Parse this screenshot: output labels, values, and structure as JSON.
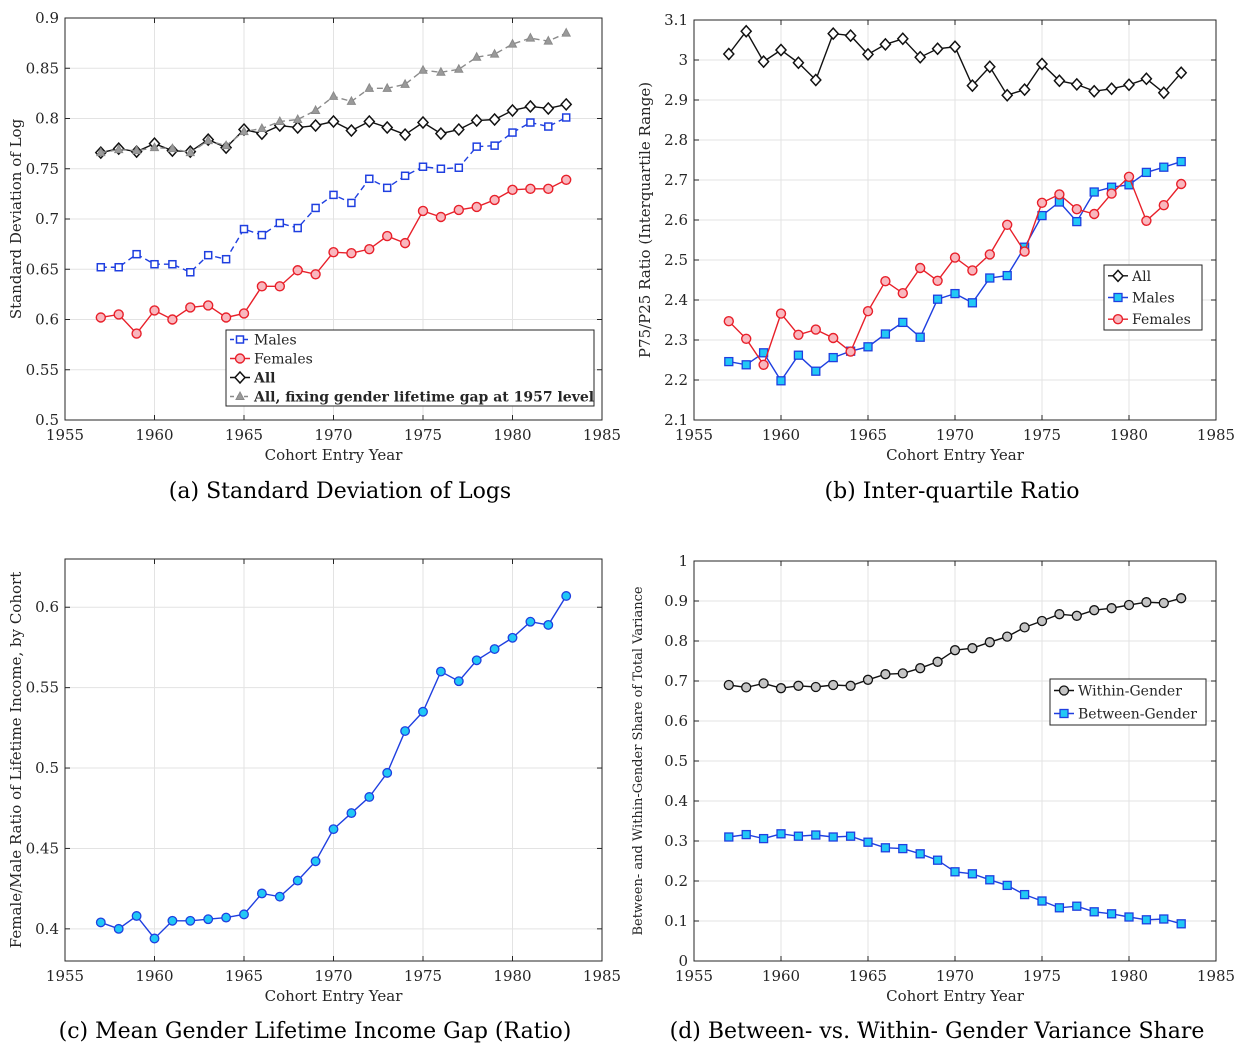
{
  "chart_data": [
    {
      "type": "line",
      "caption": "(a) Standard Deviation of Logs",
      "xlabel": "Cohort Entry Year",
      "ylabel": "Standard Deviation of Log",
      "xlim": [
        1955,
        1985
      ],
      "ylim": [
        0.5,
        0.9
      ],
      "xticks": [
        1955,
        1960,
        1965,
        1970,
        1975,
        1980,
        1985
      ],
      "yticks": [
        0.5,
        0.55,
        0.6,
        0.65,
        0.7,
        0.75,
        0.8,
        0.85,
        0.9
      ],
      "ytick_labels": [
        "0.5",
        "0.55",
        "0.6",
        "0.65",
        "0.7",
        "0.75",
        "0.8",
        "0.85",
        "0.9"
      ],
      "grid": true,
      "legend_position": "bottom-right",
      "x": [
        1957,
        1958,
        1959,
        1960,
        1961,
        1962,
        1963,
        1964,
        1965,
        1966,
        1967,
        1968,
        1969,
        1970,
        1971,
        1972,
        1973,
        1974,
        1975,
        1976,
        1977,
        1978,
        1979,
        1980,
        1981,
        1982,
        1983
      ],
      "series": [
        {
          "name": "Males",
          "color": "#1f3fe0",
          "dash": "6,4",
          "marker": "square-open",
          "values": [
            0.652,
            0.652,
            0.665,
            0.655,
            0.655,
            0.647,
            0.664,
            0.66,
            0.69,
            0.684,
            0.696,
            0.691,
            0.711,
            0.724,
            0.716,
            0.74,
            0.731,
            0.743,
            0.752,
            0.75,
            0.751,
            0.772,
            0.773,
            0.786,
            0.796,
            0.792,
            0.801
          ]
        },
        {
          "name": "Females",
          "color": "#e8202a",
          "dash": "",
          "marker": "circle-pink",
          "values": [
            0.602,
            0.605,
            0.586,
            0.609,
            0.6,
            0.612,
            0.614,
            0.602,
            0.606,
            0.633,
            0.633,
            0.649,
            0.645,
            0.667,
            0.666,
            0.67,
            0.683,
            0.676,
            0.708,
            0.702,
            0.709,
            0.712,
            0.719,
            0.729,
            0.73,
            0.73,
            0.739
          ]
        },
        {
          "name": "All",
          "color": "#111111",
          "dash": "",
          "marker": "diamond-open",
          "bold": true,
          "values": [
            0.766,
            0.77,
            0.767,
            0.775,
            0.768,
            0.767,
            0.779,
            0.771,
            0.789,
            0.785,
            0.793,
            0.791,
            0.793,
            0.797,
            0.788,
            0.797,
            0.791,
            0.784,
            0.796,
            0.785,
            0.789,
            0.798,
            0.799,
            0.808,
            0.812,
            0.81,
            0.814
          ]
        },
        {
          "name": "All, fixing gender lifetime gap at 1957 level",
          "color": "#8a8a8a",
          "dash": "6,4",
          "marker": "triangle-gray",
          "bold": true,
          "values": [
            0.766,
            0.769,
            0.768,
            0.771,
            0.77,
            0.766,
            0.778,
            0.773,
            0.787,
            0.79,
            0.797,
            0.799,
            0.808,
            0.822,
            0.817,
            0.83,
            0.83,
            0.834,
            0.848,
            0.846,
            0.849,
            0.861,
            0.864,
            0.874,
            0.88,
            0.877,
            0.885
          ]
        }
      ]
    },
    {
      "type": "line",
      "caption": "(b) Inter-quartile Ratio",
      "xlabel": "Cohort Entry Year",
      "ylabel": "P75/P25 Ratio (Interquartile Range)",
      "xlim": [
        1955,
        1985
      ],
      "ylim": [
        2.1,
        3.1
      ],
      "xticks": [
        1955,
        1960,
        1965,
        1970,
        1975,
        1980,
        1985
      ],
      "yticks": [
        2.1,
        2.2,
        2.3,
        2.4,
        2.5,
        2.6,
        2.7,
        2.8,
        2.9,
        3.0,
        3.1
      ],
      "ytick_labels": [
        "2.1",
        "2.2",
        "2.3",
        "2.4",
        "2.5",
        "2.6",
        "2.7",
        "2.8",
        "2.9",
        "3",
        "3.1"
      ],
      "grid": true,
      "legend_position": "center-right",
      "x": [
        1957,
        1958,
        1959,
        1960,
        1961,
        1962,
        1963,
        1964,
        1965,
        1966,
        1967,
        1968,
        1969,
        1970,
        1971,
        1972,
        1973,
        1974,
        1975,
        1976,
        1977,
        1978,
        1979,
        1980,
        1981,
        1982,
        1983
      ],
      "series": [
        {
          "name": "All",
          "color": "#111111",
          "dash": "",
          "marker": "diamond-open",
          "values": [
            3.015,
            3.072,
            2.996,
            3.025,
            2.993,
            2.95,
            3.066,
            3.061,
            3.014,
            3.039,
            3.053,
            3.007,
            3.028,
            3.033,
            2.936,
            2.983,
            2.912,
            2.926,
            2.99,
            2.948,
            2.939,
            2.922,
            2.928,
            2.938,
            2.953,
            2.918,
            2.968
          ]
        },
        {
          "name": "Males",
          "color": "#1f3fe0",
          "dash": "",
          "marker": "square-cyan",
          "values": [
            2.246,
            2.238,
            2.268,
            2.198,
            2.262,
            2.222,
            2.256,
            2.272,
            2.283,
            2.315,
            2.344,
            2.307,
            2.402,
            2.416,
            2.393,
            2.455,
            2.461,
            2.532,
            2.611,
            2.645,
            2.596,
            2.67,
            2.682,
            2.688,
            2.719,
            2.732,
            2.746
          ]
        },
        {
          "name": "Females",
          "color": "#e8202a",
          "dash": "",
          "marker": "circle-pink",
          "values": [
            2.347,
            2.303,
            2.238,
            2.366,
            2.313,
            2.326,
            2.305,
            2.271,
            2.372,
            2.447,
            2.417,
            2.48,
            2.448,
            2.506,
            2.474,
            2.514,
            2.588,
            2.521,
            2.643,
            2.664,
            2.627,
            2.615,
            2.666,
            2.708,
            2.598,
            2.637,
            2.69
          ]
        }
      ]
    },
    {
      "type": "line",
      "caption": "(c) Mean Gender Lifetime Income Gap (Ratio)",
      "xlabel": "Cohort Entry Year",
      "ylabel": "Female/Male Ratio of Lifetime Income, by Cohort",
      "xlim": [
        1955,
        1985
      ],
      "ylim": [
        0.38,
        0.63
      ],
      "xticks": [
        1955,
        1960,
        1965,
        1970,
        1975,
        1980,
        1985
      ],
      "yticks": [
        0.4,
        0.45,
        0.5,
        0.55,
        0.6
      ],
      "ytick_labels": [
        "0.4",
        "0.45",
        "0.5",
        "0.55",
        "0.6"
      ],
      "grid": true,
      "x": [
        1957,
        1958,
        1959,
        1960,
        1961,
        1962,
        1963,
        1964,
        1965,
        1966,
        1967,
        1968,
        1969,
        1970,
        1971,
        1972,
        1973,
        1974,
        1975,
        1976,
        1977,
        1978,
        1979,
        1980,
        1981,
        1982,
        1983
      ],
      "series": [
        {
          "color": "#1f3fe0",
          "dash": "",
          "marker": "circle-cyan",
          "values": [
            0.404,
            0.4,
            0.408,
            0.394,
            0.405,
            0.405,
            0.406,
            0.407,
            0.409,
            0.422,
            0.42,
            0.43,
            0.442,
            0.462,
            0.472,
            0.482,
            0.497,
            0.523,
            0.535,
            0.56,
            0.554,
            0.567,
            0.574,
            0.581,
            0.591,
            0.589,
            0.607
          ]
        }
      ]
    },
    {
      "type": "line",
      "caption": "(d) Between- vs. Within- Gender Variance Share",
      "xlabel": "Cohort Entry Year",
      "ylabel": "Between- and Within-Gender Share of Total Variance",
      "xlim": [
        1955,
        1985
      ],
      "ylim": [
        0,
        1
      ],
      "xticks": [
        1955,
        1960,
        1965,
        1970,
        1975,
        1980,
        1985
      ],
      "yticks": [
        0,
        0.1,
        0.2,
        0.3,
        0.4,
        0.5,
        0.6,
        0.7,
        0.8,
        0.9,
        1
      ],
      "ytick_labels": [
        "0",
        "0.1",
        "0.2",
        "0.3",
        "0.4",
        "0.5",
        "0.6",
        "0.7",
        "0.8",
        "0.9",
        "1"
      ],
      "grid": true,
      "legend_position": "center-right",
      "x": [
        1957,
        1958,
        1959,
        1960,
        1961,
        1962,
        1963,
        1964,
        1965,
        1966,
        1967,
        1968,
        1969,
        1970,
        1971,
        1972,
        1973,
        1974,
        1975,
        1976,
        1977,
        1978,
        1979,
        1980,
        1981,
        1982,
        1983
      ],
      "series": [
        {
          "name": "Within-Gender",
          "color": "#111111",
          "dash": "",
          "marker": "circle-gray",
          "values": [
            0.69,
            0.684,
            0.694,
            0.682,
            0.688,
            0.685,
            0.69,
            0.688,
            0.703,
            0.717,
            0.719,
            0.732,
            0.748,
            0.777,
            0.782,
            0.797,
            0.811,
            0.834,
            0.85,
            0.867,
            0.863,
            0.877,
            0.882,
            0.89,
            0.897,
            0.895,
            0.907
          ]
        },
        {
          "name": "Between-Gender",
          "color": "#1f3fe0",
          "dash": "",
          "marker": "square-cyan",
          "values": [
            0.31,
            0.316,
            0.306,
            0.318,
            0.312,
            0.315,
            0.31,
            0.312,
            0.297,
            0.283,
            0.281,
            0.268,
            0.252,
            0.223,
            0.218,
            0.203,
            0.189,
            0.166,
            0.15,
            0.133,
            0.137,
            0.123,
            0.118,
            0.11,
            0.103,
            0.105,
            0.093
          ]
        }
      ]
    }
  ]
}
